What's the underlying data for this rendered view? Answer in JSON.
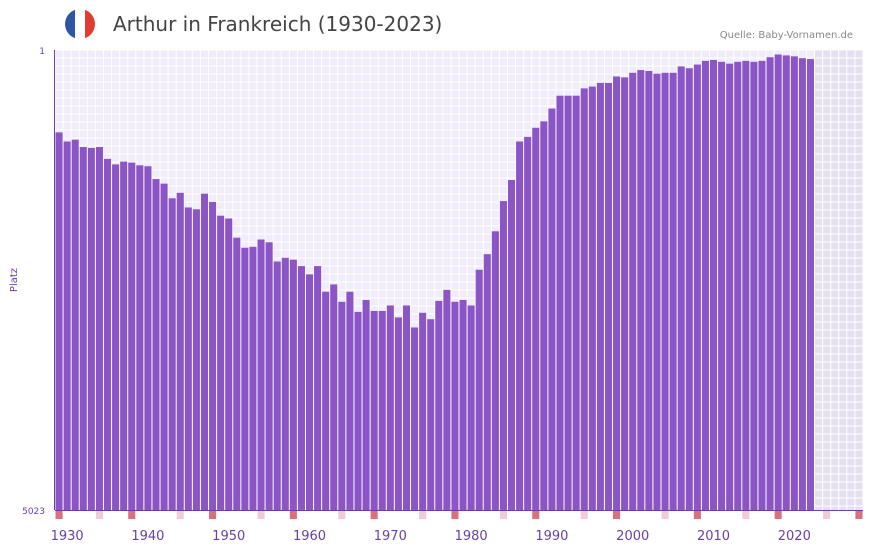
{
  "header": {
    "title": "Arthur in Frankreich (1930-2023)",
    "source": "Quelle: Baby-Vornamen.de"
  },
  "colors": {
    "bar": "#8c55c6",
    "plot_bg": "#f1ecfa",
    "future_bg": "#e5e0ef",
    "grid": "#ffffff",
    "axis_text": "#6a3fa8",
    "year_marker": "#d9707e",
    "year_marker_light": "#f1cbd5",
    "flag_blue": "#2f56a6",
    "flag_white": "#ffffff",
    "flag_red": "#e03c31"
  },
  "chart_data": {
    "type": "bar",
    "title": "Arthur in Frankreich (1930-2023)",
    "xlabel": "",
    "ylabel": "Platz",
    "ylim": [
      5023,
      1
    ],
    "y_ticks": [
      "1",
      "5023"
    ],
    "x_range": [
      1929,
      2029
    ],
    "x_ticks": [
      "1930",
      "1940",
      "1950",
      "1960",
      "1970",
      "1980",
      "1990",
      "2000",
      "2010",
      "2020"
    ],
    "categories": [
      1929,
      1930,
      1931,
      1932,
      1933,
      1934,
      1935,
      1936,
      1937,
      1938,
      1939,
      1940,
      1941,
      1942,
      1943,
      1944,
      1945,
      1946,
      1947,
      1948,
      1949,
      1950,
      1951,
      1952,
      1953,
      1954,
      1955,
      1956,
      1957,
      1958,
      1959,
      1960,
      1961,
      1962,
      1963,
      1964,
      1965,
      1966,
      1967,
      1968,
      1969,
      1970,
      1971,
      1972,
      1973,
      1974,
      1975,
      1976,
      1977,
      1978,
      1979,
      1980,
      1981,
      1982,
      1983,
      1984,
      1985,
      1986,
      1987,
      1988,
      1989,
      1990,
      1991,
      1992,
      1993,
      1994,
      1995,
      1996,
      1997,
      1998,
      1999,
      2000,
      2001,
      2002,
      2003,
      2004,
      2005,
      2006,
      2007,
      2008,
      2009,
      2010,
      2011,
      2012,
      2013,
      2014,
      2015,
      2016,
      2017,
      2018,
      2019,
      2020,
      2021,
      2022
    ],
    "values": [
      900,
      1000,
      980,
      1060,
      1070,
      1060,
      1190,
      1250,
      1220,
      1230,
      1260,
      1270,
      1410,
      1460,
      1620,
      1560,
      1720,
      1740,
      1570,
      1660,
      1810,
      1840,
      2050,
      2160,
      2150,
      2070,
      2100,
      2310,
      2270,
      2290,
      2360,
      2450,
      2360,
      2640,
      2560,
      2750,
      2640,
      2860,
      2730,
      2850,
      2850,
      2790,
      2920,
      2790,
      3030,
      2870,
      2940,
      2740,
      2620,
      2750,
      2730,
      2790,
      2400,
      2230,
      1980,
      1650,
      1420,
      1000,
      950,
      850,
      780,
      640,
      500,
      500,
      500,
      420,
      400,
      360,
      360,
      290,
      300,
      250,
      220,
      230,
      260,
      250,
      250,
      180,
      200,
      160,
      120,
      110,
      130,
      150,
      130,
      120,
      130,
      120,
      80,
      50,
      60,
      70,
      90,
      100
    ],
    "decade_marks": [
      1929,
      1938,
      1948,
      1958,
      1968,
      1978,
      1988,
      1998,
      2008,
      2018,
      2028
    ],
    "light_marks": [
      1924,
      1934,
      1944,
      1954,
      1964,
      1974,
      1984,
      1994,
      2004,
      2014,
      2024
    ]
  }
}
